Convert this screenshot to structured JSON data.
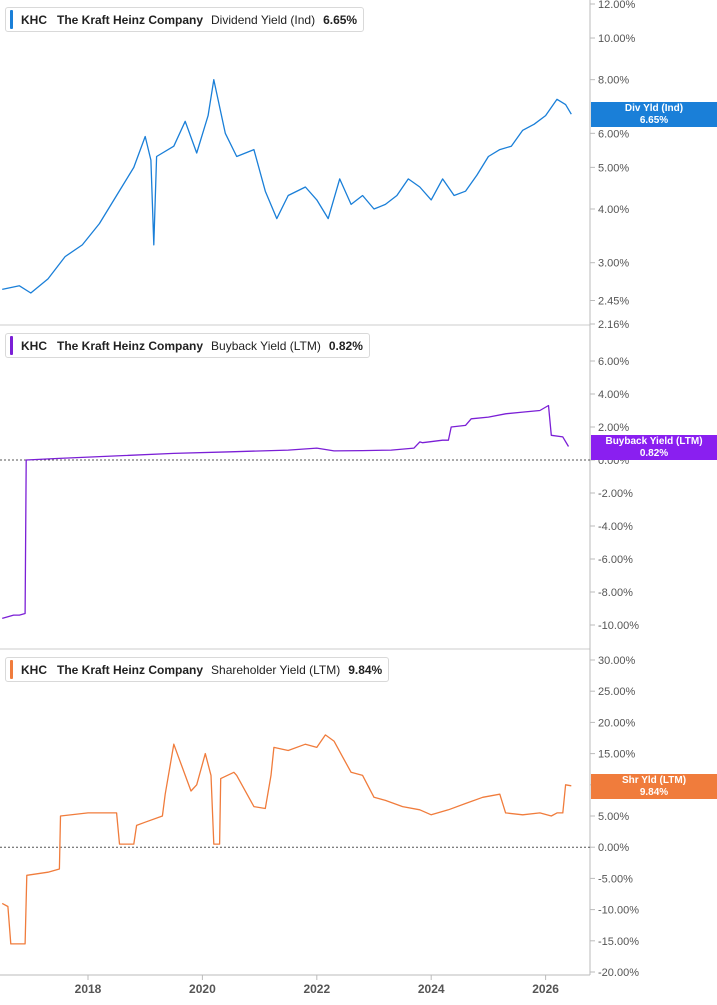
{
  "chart_data": [
    {
      "type": "line",
      "panel": "dividend",
      "ticker": "KHC",
      "company": "The Kraft Heinz Company",
      "metric": "Dividend Yield (Ind)",
      "value_label": "6.65%",
      "tag_name": "Div Yld (Ind)",
      "tag_value": "6.65%",
      "color": "#1a7fd8",
      "y_scale": "log",
      "ylim": [
        2.16,
        12.0
      ],
      "yticks": [
        "12.00%",
        "10.00%",
        "8.00%",
        "6.00%",
        "5.00%",
        "4.00%",
        "3.00%",
        "2.45%",
        "2.16%"
      ],
      "ytick_values": [
        12.0,
        10.0,
        8.0,
        6.0,
        5.0,
        4.0,
        3.0,
        2.45,
        2.16
      ],
      "x": [
        2016.5,
        2016.8,
        2017.0,
        2017.3,
        2017.6,
        2017.9,
        2018.2,
        2018.5,
        2018.8,
        2019.0,
        2019.1,
        2019.15,
        2019.2,
        2019.5,
        2019.7,
        2019.9,
        2020.1,
        2020.2,
        2020.4,
        2020.6,
        2020.9,
        2021.1,
        2021.3,
        2021.5,
        2021.8,
        2022.0,
        2022.2,
        2022.4,
        2022.6,
        2022.8,
        2023.0,
        2023.2,
        2023.4,
        2023.6,
        2023.8,
        2024.0,
        2024.2,
        2024.4,
        2024.6,
        2024.8,
        2025.0,
        2025.2,
        2025.4,
        2025.6,
        2025.8,
        2026.0,
        2026.2,
        2026.35,
        2026.45
      ],
      "y": [
        2.6,
        2.65,
        2.55,
        2.75,
        3.1,
        3.3,
        3.7,
        4.3,
        5.0,
        5.9,
        5.2,
        3.3,
        5.3,
        5.6,
        6.4,
        5.4,
        6.6,
        8.0,
        6.0,
        5.3,
        5.5,
        4.4,
        3.8,
        4.3,
        4.5,
        4.2,
        3.8,
        4.7,
        4.1,
        4.3,
        4.0,
        4.1,
        4.3,
        4.7,
        4.5,
        4.2,
        4.7,
        4.3,
        4.4,
        4.8,
        5.3,
        5.5,
        5.6,
        6.1,
        6.3,
        6.6,
        7.2,
        7.0,
        6.65
      ]
    },
    {
      "type": "line",
      "panel": "buyback",
      "ticker": "KHC",
      "company": "The Kraft Heinz Company",
      "metric": "Buyback Yield (LTM)",
      "value_label": "0.82%",
      "tag_name": "Buyback Yield (LTM)",
      "tag_value": "0.82%",
      "color": "#7b1fd6",
      "ylim": [
        -10.0,
        6.0
      ],
      "yticks": [
        "6.00%",
        "4.00%",
        "2.00%",
        "0.00%",
        "-2.00%",
        "-4.00%",
        "-6.00%",
        "-8.00%",
        "-10.00%"
      ],
      "ytick_values": [
        6.0,
        4.0,
        2.0,
        0.0,
        -2.0,
        -4.0,
        -6.0,
        -8.0,
        -10.0
      ],
      "zero_line": true,
      "x": [
        2016.5,
        2016.7,
        2016.8,
        2016.9,
        2016.92,
        2017.5,
        2018.5,
        2019.5,
        2020.5,
        2021.5,
        2022.0,
        2022.3,
        2022.8,
        2023.3,
        2023.7,
        2023.8,
        2023.85,
        2024.2,
        2024.3,
        2024.35,
        2024.6,
        2024.7,
        2025.0,
        2025.3,
        2025.6,
        2025.9,
        2026.05,
        2026.1,
        2026.3,
        2026.4
      ],
      "y": [
        -9.6,
        -9.4,
        -9.4,
        -9.3,
        0.0,
        0.1,
        0.25,
        0.4,
        0.5,
        0.6,
        0.72,
        0.55,
        0.57,
        0.6,
        0.72,
        1.1,
        1.05,
        1.2,
        1.2,
        2.0,
        2.1,
        2.5,
        2.6,
        2.8,
        2.9,
        3.0,
        3.3,
        1.5,
        1.4,
        0.82
      ]
    },
    {
      "type": "line",
      "panel": "shareholder",
      "ticker": "KHC",
      "company": "The Kraft Heinz Company",
      "metric": "Shareholder Yield (LTM)",
      "value_label": "9.84%",
      "tag_name": "Shr Yld (LTM)",
      "tag_value": "9.84%",
      "color": "#f07c3c",
      "ylim": [
        -20.0,
        30.0
      ],
      "yticks": [
        "30.00%",
        "25.00%",
        "20.00%",
        "15.00%",
        "10.00%",
        "5.00%",
        "0.00%",
        "-5.00%",
        "-10.00%",
        "-15.00%",
        "-20.00%"
      ],
      "ytick_values": [
        30.0,
        25.0,
        20.0,
        15.0,
        10.0,
        5.0,
        0.0,
        -5.0,
        -10.0,
        -15.0,
        -20.0
      ],
      "zero_line": true,
      "xticks": [
        "2018",
        "2020",
        "2022",
        "2024",
        "2026"
      ],
      "xtick_values": [
        2018,
        2020,
        2022,
        2024,
        2026
      ],
      "x": [
        2016.5,
        2016.6,
        2016.65,
        2016.9,
        2016.93,
        2017.3,
        2017.5,
        2017.52,
        2018.0,
        2018.5,
        2018.55,
        2018.8,
        2018.85,
        2019.0,
        2019.3,
        2019.35,
        2019.5,
        2019.6,
        2019.8,
        2019.9,
        2020.05,
        2020.15,
        2020.2,
        2020.3,
        2020.32,
        2020.55,
        2020.6,
        2020.9,
        2021.1,
        2021.2,
        2021.25,
        2021.5,
        2021.8,
        2022.0,
        2022.15,
        2022.3,
        2022.45,
        2022.6,
        2022.8,
        2023.0,
        2023.2,
        2023.5,
        2023.8,
        2024.0,
        2024.3,
        2024.6,
        2024.9,
        2025.2,
        2025.3,
        2025.6,
        2025.9,
        2026.1,
        2026.2,
        2026.3,
        2026.35,
        2026.45
      ],
      "y": [
        -9.0,
        -9.5,
        -15.5,
        -15.5,
        -4.5,
        -4.0,
        -3.5,
        5.0,
        5.5,
        5.5,
        0.5,
        0.5,
        3.5,
        4.0,
        5.0,
        8.5,
        16.5,
        14.0,
        9.0,
        10.0,
        15.0,
        11.5,
        0.5,
        0.5,
        11.0,
        12.0,
        11.5,
        6.5,
        6.2,
        11.5,
        16.0,
        15.5,
        16.5,
        16.0,
        18.0,
        17.0,
        14.5,
        12.0,
        11.5,
        8.0,
        7.5,
        6.5,
        6.0,
        5.2,
        6.0,
        7.0,
        8.0,
        8.5,
        5.5,
        5.2,
        5.5,
        5.0,
        5.5,
        5.5,
        10.0,
        9.84
      ]
    }
  ]
}
